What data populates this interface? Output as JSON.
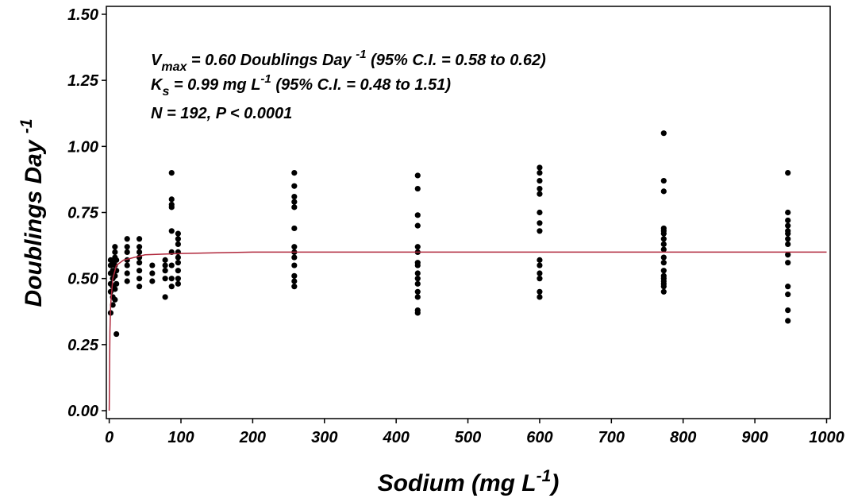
{
  "chart_data": {
    "type": "scatter",
    "annotations": [
      [
        "V",
        "max",
        " = 0.60 Doublings Day ",
        "-1",
        " (95% C.I. = 0.58 to 0.62)"
      ],
      [
        "K",
        "s",
        "   = 0.99 mg L",
        "-1",
        "   (95% C.I. = 0.48 to 1.51)"
      ],
      [
        "N = 192, P < 0.0001"
      ]
    ],
    "x_label": [
      "Sodium (mg L",
      "-1",
      ")"
    ],
    "y_label": [
      "Doublings Day ",
      "-1"
    ],
    "xlim": [
      -4,
      1005
    ],
    "ylim": [
      -0.03,
      1.53
    ],
    "xticks": [
      0,
      100,
      200,
      300,
      400,
      500,
      600,
      700,
      800,
      900,
      1000
    ],
    "yticks": [
      {
        "value": 0,
        "label": "0.00"
      },
      {
        "value": 0.25,
        "label": "0.25"
      },
      {
        "value": 0.5,
        "label": "0.50"
      },
      {
        "value": 0.75,
        "label": "0.75"
      },
      {
        "value": 1,
        "label": "1.00"
      },
      {
        "value": 1.25,
        "label": "1.25"
      },
      {
        "value": 1.5,
        "label": "1.50"
      }
    ],
    "series": [
      {
        "color": "#000000",
        "x": [
          2,
          2,
          2,
          2,
          2,
          2,
          5,
          5,
          5,
          5,
          5,
          5,
          8,
          8,
          8,
          8,
          8,
          8,
          8,
          10,
          10,
          10,
          10,
          25,
          25,
          25,
          25,
          25,
          25,
          25,
          42,
          42,
          42,
          42,
          42,
          42,
          42,
          42,
          60,
          60,
          60,
          78,
          78,
          78,
          78,
          78,
          87,
          87,
          87,
          87,
          87,
          87,
          87,
          87,
          87,
          96,
          96,
          96,
          96,
          96,
          96,
          96,
          96,
          96,
          258,
          258,
          258,
          258,
          258,
          258,
          258,
          258,
          258,
          258,
          258,
          258,
          258,
          430,
          430,
          430,
          430,
          430,
          430,
          430,
          430,
          430,
          430,
          430,
          430,
          430,
          430,
          430,
          600,
          600,
          600,
          600,
          600,
          600,
          600,
          600,
          600,
          600,
          600,
          600,
          600,
          600,
          773,
          773,
          773,
          773,
          773,
          773,
          773,
          773,
          773,
          773,
          773,
          773,
          773,
          773,
          773,
          773,
          773,
          773,
          946,
          946,
          946,
          946,
          946,
          946,
          946,
          946,
          946,
          946,
          946,
          946,
          946,
          946
        ],
        "values": [
          0.37,
          0.45,
          0.48,
          0.52,
          0.55,
          0.57,
          0.4,
          0.43,
          0.47,
          0.5,
          0.53,
          0.56,
          0.42,
          0.46,
          0.51,
          0.55,
          0.58,
          0.6,
          0.62,
          0.29,
          0.48,
          0.53,
          0.57,
          0.49,
          0.52,
          0.55,
          0.57,
          0.6,
          0.62,
          0.65,
          0.47,
          0.5,
          0.53,
          0.56,
          0.58,
          0.6,
          0.62,
          0.65,
          0.49,
          0.52,
          0.55,
          0.43,
          0.5,
          0.53,
          0.55,
          0.57,
          0.47,
          0.5,
          0.55,
          0.6,
          0.68,
          0.77,
          0.78,
          0.8,
          0.9,
          0.48,
          0.5,
          0.53,
          0.56,
          0.58,
          0.6,
          0.63,
          0.65,
          0.67,
          0.47,
          0.49,
          0.51,
          0.55,
          0.58,
          0.6,
          0.62,
          0.69,
          0.77,
          0.79,
          0.81,
          0.85,
          0.9,
          0.37,
          0.38,
          0.43,
          0.45,
          0.48,
          0.5,
          0.52,
          0.55,
          0.56,
          0.6,
          0.62,
          0.7,
          0.74,
          0.84,
          0.89,
          0.43,
          0.45,
          0.5,
          0.52,
          0.55,
          0.57,
          0.68,
          0.71,
          0.75,
          0.82,
          0.84,
          0.87,
          0.9,
          0.92,
          0.45,
          0.47,
          0.48,
          0.49,
          0.5,
          0.51,
          0.53,
          0.56,
          0.58,
          0.61,
          0.63,
          0.65,
          0.67,
          0.68,
          0.69,
          0.83,
          0.87,
          1.05,
          0.34,
          0.38,
          0.44,
          0.47,
          0.56,
          0.59,
          0.63,
          0.65,
          0.67,
          0.68,
          0.7,
          0.72,
          0.75,
          0.9
        ]
      },
      {
        "type": "line",
        "color": "#b0283c",
        "x": [
          0,
          1,
          2,
          5,
          10,
          20,
          50,
          100,
          200,
          400,
          600,
          800,
          1000
        ],
        "values": [
          0,
          0.3,
          0.4,
          0.5,
          0.55,
          0.57,
          0.59,
          0.595,
          0.6,
          0.6,
          0.6,
          0.6,
          0.6
        ]
      }
    ]
  }
}
